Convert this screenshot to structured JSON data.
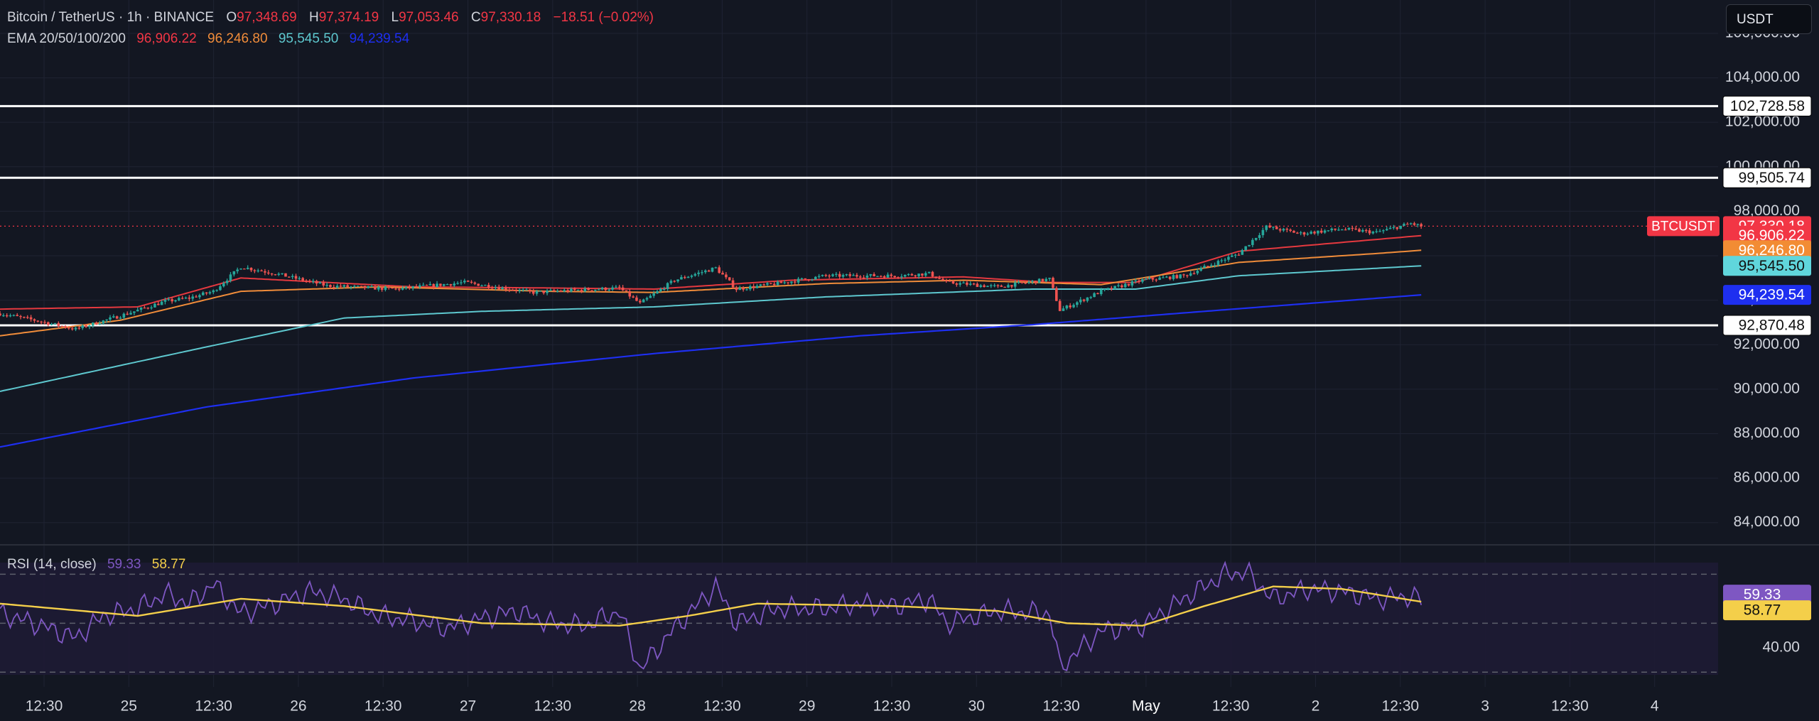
{
  "header": {
    "symbol": "Bitcoin / TetherUS · 1h · BINANCE",
    "open_label": "O",
    "open": "97,348.69",
    "high_label": "H",
    "high": "97,374.19",
    "low_label": "L",
    "low": "97,053.46",
    "close_label": "C",
    "close": "97,330.18",
    "change": "−18.51 (−0.02%)",
    "ema_label": "EMA 20/50/100/200",
    "ema20": "96,906.22",
    "ema50": "96,246.80",
    "ema100": "95,545.50",
    "ema200": "94,239.54",
    "currency": "USDT"
  },
  "colors": {
    "background": "#131722",
    "up": "#26a69a",
    "down": "#ef5350",
    "ema20": "#e5393f",
    "ema50": "#f08c3a",
    "ema100": "#5ec8cf",
    "ema200": "#1e2ff0",
    "rsi": "#7e57c2",
    "rsi_ma": "#f4cf4a"
  },
  "chart_data": [
    {
      "type": "candlestick",
      "symbol": "BTCUSDT",
      "timeframe": "1h",
      "ylim": [
        83000,
        107500
      ],
      "y_ticks": [
        "106,000.00",
        "104,000.00",
        "102,000.00",
        "100,000.00",
        "98,000.00",
        "96,000.00",
        "94,000.00",
        "92,000.00",
        "90,000.00",
        "88,000.00",
        "86,000.00",
        "84,000.00"
      ],
      "x_tick_labels": [
        "12:30",
        "25",
        "12:30",
        "26",
        "12:30",
        "27",
        "12:30",
        "28",
        "12:30",
        "29",
        "12:30",
        "30",
        "12:30",
        "May",
        "12:30",
        "2",
        "12:30",
        "3",
        "12:30",
        "4"
      ],
      "ohlc_anchors": [
        [
          0,
          93400
        ],
        [
          10,
          93100
        ],
        [
          22,
          92700
        ],
        [
          35,
          93300
        ],
        [
          48,
          93950
        ],
        [
          55,
          94100
        ],
        [
          62,
          94400
        ],
        [
          70,
          95500
        ],
        [
          80,
          95200
        ],
        [
          95,
          94650
        ],
        [
          115,
          94500
        ],
        [
          135,
          94800
        ],
        [
          155,
          94350
        ],
        [
          180,
          94550
        ],
        [
          186,
          93850
        ],
        [
          196,
          94900
        ],
        [
          208,
          95450
        ],
        [
          214,
          94500
        ],
        [
          226,
          94750
        ],
        [
          240,
          95100
        ],
        [
          260,
          95100
        ],
        [
          270,
          95200
        ],
        [
          275,
          94800
        ],
        [
          290,
          94600
        ],
        [
          305,
          94950
        ],
        [
          308,
          93550
        ],
        [
          320,
          94400
        ],
        [
          332,
          94900
        ],
        [
          344,
          95100
        ],
        [
          360,
          96100
        ],
        [
          368,
          97300
        ],
        [
          378,
          97000
        ],
        [
          390,
          97200
        ],
        [
          400,
          97050
        ],
        [
          410,
          97450
        ],
        [
          413,
          97330.18
        ]
      ],
      "ema_series": [
        {
          "name": "EMA 20",
          "last": 96906.22,
          "points": [
            [
              0,
              93600
            ],
            [
              40,
              93700
            ],
            [
              70,
              95000
            ],
            [
              120,
              94600
            ],
            [
              160,
              94550
            ],
            [
              190,
              94500
            ],
            [
              230,
              94900
            ],
            [
              280,
              95050
            ],
            [
              305,
              94800
            ],
            [
              330,
              94800
            ],
            [
              360,
              96200
            ],
            [
              390,
              96600
            ],
            [
              413,
              96906.22
            ]
          ]
        },
        {
          "name": "EMA 50",
          "last": 96246.8,
          "points": [
            [
              0,
              92400
            ],
            [
              35,
              93100
            ],
            [
              70,
              94400
            ],
            [
              110,
              94600
            ],
            [
              160,
              94400
            ],
            [
              190,
              94350
            ],
            [
              240,
              94750
            ],
            [
              280,
              94900
            ],
            [
              320,
              94700
            ],
            [
              360,
              95700
            ],
            [
              400,
              96100
            ],
            [
              413,
              96246.8
            ]
          ]
        },
        {
          "name": "EMA 100",
          "last": 95545.5,
          "points": [
            [
              0,
              89900
            ],
            [
              60,
              91900
            ],
            [
              100,
              93200
            ],
            [
              140,
              93500
            ],
            [
              190,
              93700
            ],
            [
              240,
              94150
            ],
            [
              300,
              94500
            ],
            [
              330,
              94500
            ],
            [
              360,
              95100
            ],
            [
              413,
              95545.5
            ]
          ]
        },
        {
          "name": "EMA 200",
          "last": 94239.54,
          "points": [
            [
              0,
              87400
            ],
            [
              60,
              89200
            ],
            [
              120,
              90500
            ],
            [
              190,
              91600
            ],
            [
              250,
              92400
            ],
            [
              300,
              92900
            ],
            [
              350,
              93500
            ],
            [
              413,
              94239.54
            ]
          ]
        }
      ],
      "horizontal_levels": [
        {
          "label": "102,728.58",
          "value": 102728.58
        },
        {
          "label": "99,505.74",
          "value": 99505.74
        },
        {
          "label": "92,870.48",
          "value": 92870.48
        }
      ],
      "price_tags": [
        {
          "text": "97,330.18",
          "value": 97330.18,
          "color": "#f23645",
          "text_color": "#ffffff"
        },
        {
          "text": "96,906.22",
          "value": 96906.22,
          "color": "#f23645",
          "text_color": "#ffffff"
        },
        {
          "text": "96,246.80",
          "value": 96246.8,
          "color": "#f28c34",
          "text_color": "#ffffff"
        },
        {
          "text": "95,545.50",
          "value": 95545.5,
          "color": "#60d6dc",
          "text_color": "#111111"
        },
        {
          "text": "94,239.54",
          "value": 94239.54,
          "color": "#1e2ff0",
          "text_color": "#ffffff"
        }
      ],
      "symbol_tag": "BTCUSDT"
    },
    {
      "type": "line",
      "title": "RSI (14, close)",
      "rsi_value": "59.33",
      "rsi_ma_value": "58.77",
      "ylim": [
        24,
        82
      ],
      "band": [
        30,
        70
      ],
      "mid": 50,
      "y_ticks": [
        "40.00"
      ],
      "series": [
        {
          "name": "RSI",
          "last": 59.33,
          "points": [
            [
              0,
              54
            ],
            [
              10,
              50
            ],
            [
              22,
              44
            ],
            [
              30,
              53
            ],
            [
              40,
              56
            ],
            [
              48,
              62
            ],
            [
              55,
              58
            ],
            [
              62,
              66
            ],
            [
              70,
              54
            ],
            [
              80,
              58
            ],
            [
              90,
              63
            ],
            [
              100,
              60
            ],
            [
              110,
              53
            ],
            [
              120,
              51
            ],
            [
              130,
              48
            ],
            [
              140,
              52
            ],
            [
              150,
              55
            ],
            [
              160,
              50
            ],
            [
              170,
              49
            ],
            [
              180,
              55
            ],
            [
              186,
              31
            ],
            [
              196,
              48
            ],
            [
              208,
              65
            ],
            [
              214,
              50
            ],
            [
              226,
              56
            ],
            [
              240,
              56
            ],
            [
              250,
              58
            ],
            [
              260,
              57
            ],
            [
              270,
              60
            ],
            [
              275,
              50
            ],
            [
              290,
              55
            ],
            [
              305,
              54
            ],
            [
              308,
              32
            ],
            [
              320,
              47
            ],
            [
              332,
              49
            ],
            [
              344,
              60
            ],
            [
              356,
              70
            ],
            [
              362,
              71
            ],
            [
              370,
              60
            ],
            [
              380,
              64
            ],
            [
              390,
              63
            ],
            [
              400,
              60
            ],
            [
              410,
              61
            ],
            [
              413,
              59.33
            ]
          ]
        },
        {
          "name": "RSI MA",
          "last": 58.77,
          "points": [
            [
              0,
              58
            ],
            [
              40,
              53
            ],
            [
              70,
              60
            ],
            [
              100,
              57
            ],
            [
              140,
              50
            ],
            [
              180,
              49
            ],
            [
              200,
              53
            ],
            [
              220,
              58
            ],
            [
              260,
              57
            ],
            [
              290,
              55
            ],
            [
              310,
              50
            ],
            [
              332,
              49
            ],
            [
              350,
              57
            ],
            [
              370,
              65
            ],
            [
              390,
              64
            ],
            [
              413,
              58.77
            ]
          ]
        }
      ]
    }
  ]
}
